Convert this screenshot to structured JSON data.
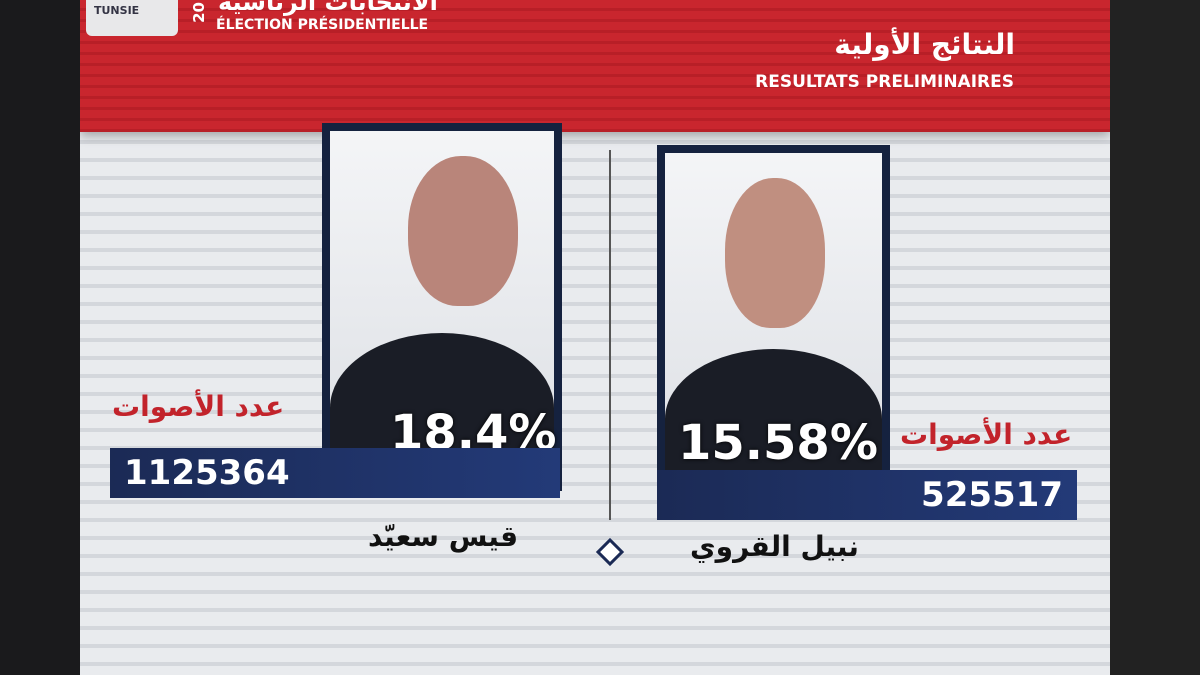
{
  "header": {
    "logo": "TUNSIE",
    "year": "20",
    "title_ar": "الانتخابات الرئاسية",
    "title_fr": "ÉLECTION PRÉSIDENTIELLE",
    "results_ar": "النتائج الأولية",
    "results_fr": "RESULTATS PRELIMINAIRES"
  },
  "candidates": [
    {
      "name": "قيس سعيّد",
      "percent": "18.4%",
      "votes_label": "عدد الأصوات",
      "votes": "1125364"
    },
    {
      "name": "نبيل القروي",
      "percent": "15.58%",
      "votes_label": "عدد الأصوات",
      "votes": "525517"
    }
  ],
  "colors": {
    "brand_red": "#c9262e",
    "navy": "#1b2a55"
  }
}
